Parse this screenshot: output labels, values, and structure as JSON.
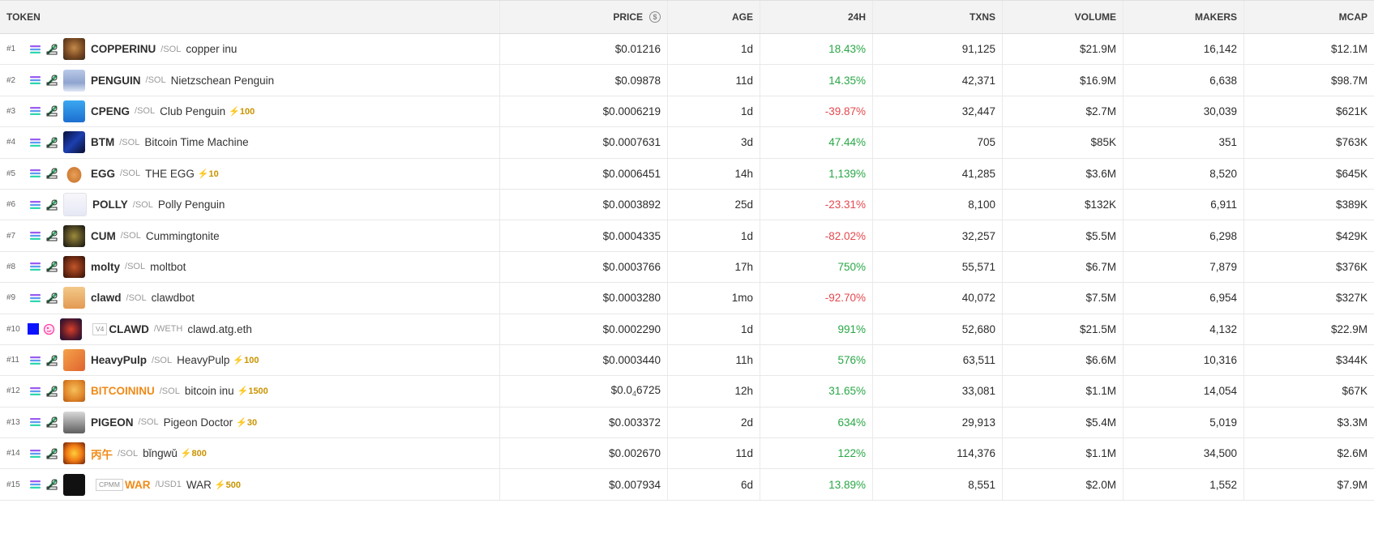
{
  "columns": {
    "token": "TOKEN",
    "price": "PRICE",
    "age": "AGE",
    "change24h": "24H",
    "txns": "TXNS",
    "volume": "VOLUME",
    "makers": "MAKERS",
    "mcap": "MCAP"
  },
  "colors": {
    "positive": "#28a745",
    "negative": "#e5484d",
    "boost": "#c99300",
    "orange_symbol": "#f08a17"
  },
  "rows": [
    {
      "rank": "#1",
      "symbol": "COPPERINU",
      "quote": "/SOL",
      "name": "copper inu",
      "boost": "",
      "price": "$0.01216",
      "age": "1d",
      "change": "18.43%",
      "dir": "up",
      "txns": "91,125",
      "volume": "$21.9M",
      "makers": "16,142",
      "mcap": "$12.1M"
    },
    {
      "rank": "#2",
      "symbol": "PENGUIN",
      "quote": "/SOL",
      "name": "Nietzschean Penguin",
      "boost": "",
      "price": "$0.09878",
      "age": "11d",
      "change": "14.35%",
      "dir": "up",
      "txns": "42,371",
      "volume": "$16.9M",
      "makers": "6,638",
      "mcap": "$98.7M"
    },
    {
      "rank": "#3",
      "symbol": "CPENG",
      "quote": "/SOL",
      "name": "Club Penguin",
      "boost": "⚡100",
      "price": "$0.0006219",
      "age": "1d",
      "change": "-39.87%",
      "dir": "down",
      "txns": "32,447",
      "volume": "$2.7M",
      "makers": "30,039",
      "mcap": "$621K"
    },
    {
      "rank": "#4",
      "symbol": "BTM",
      "quote": "/SOL",
      "name": "Bitcoin Time Machine",
      "boost": "",
      "price": "$0.0007631",
      "age": "3d",
      "change": "47.44%",
      "dir": "up",
      "txns": "705",
      "volume": "$85K",
      "makers": "351",
      "mcap": "$763K"
    },
    {
      "rank": "#5",
      "symbol": "EGG",
      "quote": "/SOL",
      "name": "THE EGG",
      "boost": "⚡10",
      "price": "$0.0006451",
      "age": "14h",
      "change": "1,139%",
      "dir": "up",
      "txns": "41,285",
      "volume": "$3.6M",
      "makers": "8,520",
      "mcap": "$645K"
    },
    {
      "rank": "#6",
      "symbol": "POLLY",
      "quote": "/SOL",
      "name": "Polly Penguin",
      "boost": "",
      "price": "$0.0003892",
      "age": "25d",
      "change": "-23.31%",
      "dir": "down",
      "txns": "8,100",
      "volume": "$132K",
      "makers": "6,911",
      "mcap": "$389K"
    },
    {
      "rank": "#7",
      "symbol": "CUM",
      "quote": "/SOL",
      "name": "Cummingtonite",
      "boost": "",
      "price": "$0.0004335",
      "age": "1d",
      "change": "-82.02%",
      "dir": "down",
      "txns": "32,257",
      "volume": "$5.5M",
      "makers": "6,298",
      "mcap": "$429K"
    },
    {
      "rank": "#8",
      "symbol": "molty",
      "quote": "/SOL",
      "name": "moltbot",
      "boost": "",
      "price": "$0.0003766",
      "age": "17h",
      "change": "750%",
      "dir": "up",
      "txns": "55,571",
      "volume": "$6.7M",
      "makers": "7,879",
      "mcap": "$376K"
    },
    {
      "rank": "#9",
      "symbol": "clawd",
      "quote": "/SOL",
      "name": "clawdbot",
      "boost": "",
      "price": "$0.0003280",
      "age": "1mo",
      "change": "-92.70%",
      "dir": "down",
      "txns": "40,072",
      "volume": "$7.5M",
      "makers": "6,954",
      "mcap": "$327K"
    },
    {
      "rank": "#10",
      "symbol": "CLAWD",
      "quote": "/WETH",
      "name": "clawd.atg.eth",
      "boost": "",
      "badge": "V4",
      "price": "$0.0002290",
      "age": "1d",
      "change": "991%",
      "dir": "up",
      "txns": "52,680",
      "volume": "$21.5M",
      "makers": "4,132",
      "mcap": "$22.9M"
    },
    {
      "rank": "#11",
      "symbol": "HeavyPulp",
      "quote": "/SOL",
      "name": "HeavyPulp",
      "boost": "⚡100",
      "price": "$0.0003440",
      "age": "11h",
      "change": "576%",
      "dir": "up",
      "txns": "63,511",
      "volume": "$6.6M",
      "makers": "10,316",
      "mcap": "$344K"
    },
    {
      "rank": "#12",
      "symbol": "BITCOININU",
      "quote": "/SOL",
      "name": "bitcoin inu",
      "boost": "⚡1500",
      "price_prefix": "$0.0",
      "price_sub": "4",
      "price_suffix": "6725",
      "price": "",
      "age": "12h",
      "change": "31.65%",
      "dir": "up",
      "txns": "33,081",
      "volume": "$1.1M",
      "makers": "14,054",
      "mcap": "$67K",
      "orange": true
    },
    {
      "rank": "#13",
      "symbol": "PIGEON",
      "quote": "/SOL",
      "name": "Pigeon Doctor",
      "boost": "⚡30",
      "price": "$0.003372",
      "age": "2d",
      "change": "634%",
      "dir": "up",
      "txns": "29,913",
      "volume": "$5.4M",
      "makers": "5,019",
      "mcap": "$3.3M"
    },
    {
      "rank": "#14",
      "symbol": "丙午",
      "quote": "/SOL",
      "name": "bǐngwǔ",
      "boost": "⚡800",
      "price": "$0.002670",
      "age": "11d",
      "change": "122%",
      "dir": "up",
      "txns": "114,376",
      "volume": "$1.1M",
      "makers": "34,500",
      "mcap": "$2.6M",
      "orange": true
    },
    {
      "rank": "#15",
      "symbol": "WAR",
      "quote": "/USD1",
      "name": "WAR",
      "boost": "⚡500",
      "badge": "CPMM",
      "price": "$0.007934",
      "age": "6d",
      "change": "13.89%",
      "dir": "up",
      "txns": "8,551",
      "volume": "$2.0M",
      "makers": "1,552",
      "mcap": "$7.9M",
      "orange": true
    }
  ]
}
